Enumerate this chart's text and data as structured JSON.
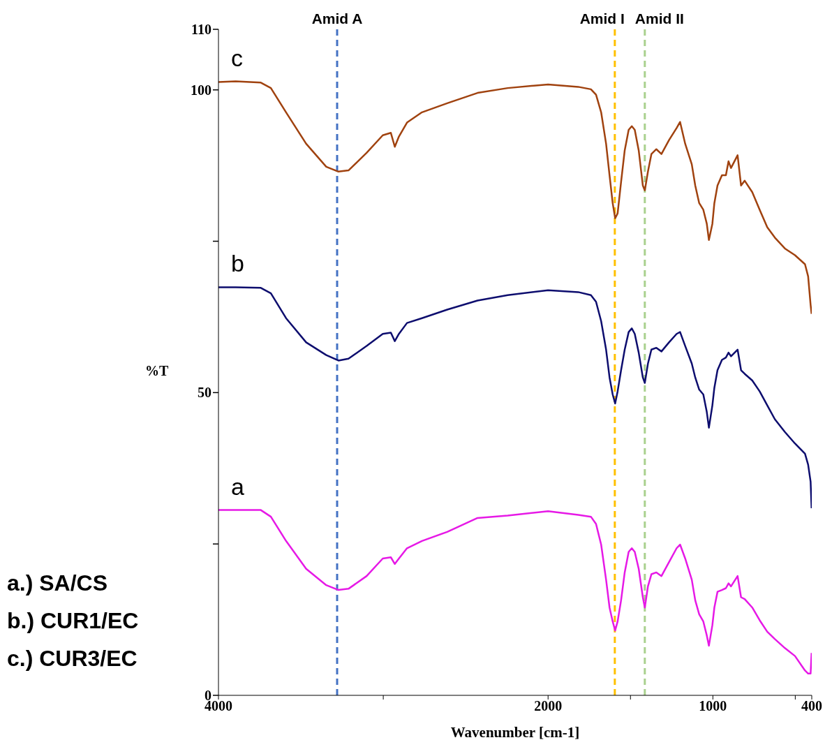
{
  "chart_data": {
    "type": "line",
    "xlabel": "Wavenumber [cm-1]",
    "ylabel": "%T",
    "x": [
      4000,
      3896,
      3743,
      3682,
      3590,
      3468,
      3346,
      3272,
      3211,
      3101,
      3003,
      2954,
      2930,
      2905,
      2856,
      2765,
      2612,
      2428,
      2245,
      2000,
      1817,
      1740,
      1709,
      1678,
      1648,
      1627,
      1608,
      1593,
      1578,
      1557,
      1535,
      1511,
      1492,
      1474,
      1450,
      1425,
      1413,
      1394,
      1373,
      1343,
      1312,
      1266,
      1220,
      1199,
      1168,
      1128,
      1107,
      1083,
      1058,
      1037,
      1024,
      1003,
      991,
      972,
      945,
      921,
      905,
      890,
      850,
      829,
      807,
      761,
      716,
      670,
      624,
      563,
      502,
      441,
      422,
      407,
      401
    ],
    "series": [
      {
        "name": "a",
        "color": "#e619e6",
        "values": [
          30.6,
          30.6,
          30.6,
          29.5,
          25.5,
          20.9,
          18.2,
          17.4,
          17.6,
          19.7,
          22.6,
          22.8,
          21.7,
          22.6,
          24.3,
          25.5,
          27.0,
          29.3,
          29.7,
          30.4,
          29.8,
          29.5,
          28.3,
          24.9,
          19.1,
          14.5,
          12.2,
          10.7,
          12.2,
          15.7,
          20.3,
          23.7,
          24.3,
          23.7,
          20.9,
          16.2,
          14.5,
          18.0,
          20.0,
          20.3,
          19.7,
          22.0,
          24.3,
          24.9,
          22.6,
          19.1,
          15.7,
          13.4,
          12.2,
          9.9,
          8.2,
          11.6,
          14.5,
          17.1,
          17.4,
          17.7,
          18.5,
          18.0,
          19.7,
          16.2,
          15.9,
          14.5,
          12.4,
          10.5,
          9.3,
          7.8,
          6.5,
          4.1,
          3.6,
          3.6,
          7.0
        ]
      },
      {
        "name": "b",
        "color": "#0d0d6e",
        "values": [
          67.4,
          67.4,
          67.3,
          66.4,
          62.3,
          58.3,
          56.2,
          55.3,
          55.6,
          57.7,
          59.7,
          59.9,
          58.5,
          59.7,
          61.5,
          62.3,
          63.7,
          65.2,
          66.1,
          66.9,
          66.6,
          66.1,
          65.0,
          61.8,
          57.1,
          52.5,
          49.7,
          48.2,
          50.2,
          53.7,
          57.1,
          60.0,
          60.6,
          59.7,
          56.6,
          52.5,
          51.6,
          54.8,
          57.1,
          57.4,
          56.8,
          58.3,
          59.7,
          60.0,
          57.7,
          54.8,
          52.5,
          50.5,
          49.7,
          46.8,
          44.2,
          47.9,
          50.8,
          53.7,
          55.4,
          55.8,
          56.6,
          56.0,
          57.1,
          53.7,
          53.1,
          52.0,
          50.2,
          47.9,
          45.6,
          43.5,
          41.6,
          39.9,
          38.1,
          35.3,
          30.9
        ]
      },
      {
        "name": "c",
        "color": "#a0420f",
        "values": [
          101.3,
          101.4,
          101.2,
          100.3,
          96.3,
          91.1,
          87.3,
          86.5,
          86.7,
          89.6,
          92.5,
          92.9,
          90.6,
          92.3,
          94.6,
          96.3,
          97.8,
          99.5,
          100.3,
          100.9,
          100.5,
          100.1,
          99.2,
          96.3,
          91.1,
          85.9,
          81.3,
          78.8,
          79.6,
          84.8,
          90.0,
          93.4,
          94.0,
          93.4,
          90.0,
          84.2,
          83.4,
          86.5,
          89.4,
          90.2,
          89.4,
          91.7,
          93.7,
          94.7,
          91.1,
          87.7,
          84.2,
          81.3,
          80.2,
          77.9,
          75.2,
          77.9,
          81.3,
          84.2,
          85.9,
          85.9,
          88.2,
          87.1,
          89.2,
          84.2,
          85.0,
          83.1,
          80.2,
          77.3,
          75.6,
          73.8,
          72.7,
          71.2,
          69.2,
          64.5,
          63.0
        ]
      }
    ],
    "xlim": [
      4000,
      400
    ],
    "xticks": [
      4000,
      {
        "value": 3000,
        "label": null
      },
      2000,
      {
        "value": 1500,
        "label": null
      },
      1000,
      {
        "value": 500,
        "label": null
      },
      400
    ],
    "ylim": [
      0,
      110
    ],
    "yticks": [
      0,
      {
        "value": 25,
        "label": null
      },
      50,
      {
        "value": 75,
        "label": null
      },
      100,
      110
    ],
    "ref_lines": [
      {
        "axis": "x",
        "value": 3280,
        "label": "Amid A",
        "color": "#4472c4",
        "line_style": "dashed"
      },
      {
        "axis": "x",
        "value": 1595,
        "label": "Amid I",
        "color": "#ffc000",
        "line_style": "dashed"
      },
      {
        "axis": "x",
        "value": 1413,
        "label": "Amid II",
        "color": "#a9d18e",
        "line_style": "dashed"
      }
    ],
    "annotations": [
      "a.) SA/CS",
      "b.) CUR1/EC",
      "c.) CUR3/EC"
    ],
    "legend": false,
    "grid": false,
    "marker": "none",
    "line_style": "solid"
  }
}
